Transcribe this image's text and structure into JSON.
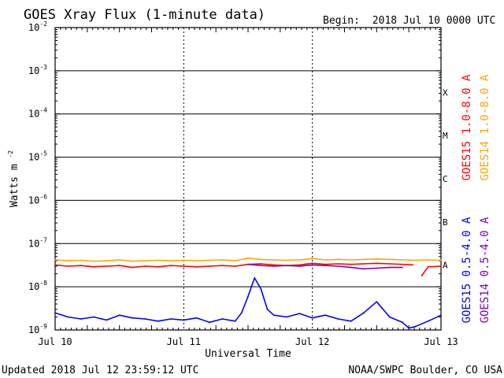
{
  "chart_data": {
    "type": "line",
    "title": "GOES Xray Flux (1-minute data)",
    "begin_label": "Begin:",
    "begin_value": "2018 Jul 10 0000 UTC",
    "ylabel": "Watts m",
    "ylabel_sup": "-2",
    "xlabel": "Universal Time",
    "y_scale": "log",
    "ylim": [
      1e-09,
      0.01
    ],
    "y_ticks": [
      {
        "value": 0.01,
        "base": "10",
        "exp": "-2"
      },
      {
        "value": 0.001,
        "base": "10",
        "exp": "-3"
      },
      {
        "value": 0.0001,
        "base": "10",
        "exp": "-4"
      },
      {
        "value": 1e-05,
        "base": "10",
        "exp": "-5"
      },
      {
        "value": 1e-06,
        "base": "10",
        "exp": "-6"
      },
      {
        "value": 1e-07,
        "base": "10",
        "exp": "-7"
      },
      {
        "value": 1e-08,
        "base": "10",
        "exp": "-8"
      },
      {
        "value": 1e-09,
        "base": "10",
        "exp": "-9"
      }
    ],
    "x_unit": "days since 2018 Jul 10 0000 UTC",
    "xlim": [
      0,
      3
    ],
    "x_ticks": [
      {
        "value": 0,
        "label": "Jul 10"
      },
      {
        "value": 1,
        "label": "Jul 11"
      },
      {
        "value": 2,
        "label": "Jul 12"
      },
      {
        "value": 3,
        "label": "Jul 13"
      }
    ],
    "flare_classes": [
      {
        "label": "X",
        "value": 0.0001
      },
      {
        "label": "M",
        "value": 1e-05
      },
      {
        "label": "C",
        "value": 1e-06
      },
      {
        "label": "B",
        "value": 1e-07
      },
      {
        "label": "A",
        "value": 1e-08
      }
    ],
    "grid": true,
    "series": [
      {
        "name": "GOES15 1.0-8.0 A",
        "color": "#ff0000",
        "x": [
          0.0,
          0.1,
          0.2,
          0.3,
          0.4,
          0.5,
          0.6,
          0.7,
          0.8,
          0.9,
          1.0,
          1.1,
          1.2,
          1.3,
          1.4,
          1.5,
          1.6,
          1.7,
          1.8,
          1.9,
          2.0,
          2.1,
          2.2,
          2.3,
          2.4,
          2.5,
          2.6,
          2.7,
          2.78,
          2.8,
          2.85,
          2.9,
          3.0
        ],
        "y": [
          3.2e-08,
          3e-08,
          3.1e-08,
          2.9e-08,
          3e-08,
          3.1e-08,
          2.8e-08,
          3e-08,
          2.9e-08,
          3.1e-08,
          3e-08,
          2.9e-08,
          3e-08,
          3.1e-08,
          3e-08,
          3.3e-08,
          3.4e-08,
          3.2e-08,
          3.1e-08,
          3.2e-08,
          3.5e-08,
          3.3e-08,
          3.4e-08,
          3.3e-08,
          3.4e-08,
          3.5e-08,
          3.4e-08,
          3.3e-08,
          3.2e-08,
          null,
          1.8e-08,
          2.9e-08,
          3e-08
        ]
      },
      {
        "name": "GOES14 1.0-8.0 A",
        "color": "#ffa500",
        "x": [
          0.0,
          0.1,
          0.2,
          0.3,
          0.4,
          0.5,
          0.6,
          0.7,
          0.8,
          0.9,
          1.0,
          1.1,
          1.2,
          1.3,
          1.4,
          1.5,
          1.6,
          1.7,
          1.8,
          1.9,
          2.0,
          2.1,
          2.2,
          2.3,
          2.4,
          2.5,
          2.6,
          2.7,
          2.8,
          2.9,
          3.0
        ],
        "y": [
          4.2e-08,
          4e-08,
          4.1e-08,
          3.9e-08,
          4e-08,
          4.2e-08,
          3.9e-08,
          4e-08,
          4.1e-08,
          4e-08,
          4.1e-08,
          4e-08,
          4.1e-08,
          4.2e-08,
          4e-08,
          4.6e-08,
          4.3e-08,
          4.2e-08,
          4.1e-08,
          4.2e-08,
          4.5e-08,
          4.2e-08,
          4.3e-08,
          4.2e-08,
          4.3e-08,
          4.4e-08,
          4.3e-08,
          4.2e-08,
          4.1e-08,
          4.2e-08,
          4.1e-08
        ]
      },
      {
        "name": "GOES15 0.5-4.0 A",
        "color": "#0000ff",
        "x": [
          0.0,
          0.1,
          0.2,
          0.3,
          0.4,
          0.5,
          0.6,
          0.7,
          0.8,
          0.9,
          1.0,
          1.1,
          1.2,
          1.3,
          1.4,
          1.45,
          1.5,
          1.55,
          1.6,
          1.65,
          1.7,
          1.8,
          1.9,
          2.0,
          2.1,
          2.2,
          2.3,
          2.4,
          2.5,
          2.6,
          2.7,
          2.75,
          2.8,
          2.9,
          3.0
        ],
        "y": [
          2.5e-09,
          2e-09,
          1.8e-09,
          2e-09,
          1.7e-09,
          2.2e-09,
          1.9e-09,
          1.8e-09,
          1.6e-09,
          1.8e-09,
          1.7e-09,
          1.9e-09,
          1.5e-09,
          1.8e-09,
          1.6e-09,
          2.5e-09,
          6e-09,
          1.6e-08,
          9e-09,
          3e-09,
          2.2e-09,
          2e-09,
          2.4e-09,
          1.9e-09,
          2.2e-09,
          1.8e-09,
          1.6e-09,
          2.5e-09,
          4.5e-09,
          2e-09,
          1.5e-09,
          1.1e-09,
          1.2e-09,
          1.6e-09,
          2.2e-09
        ]
      },
      {
        "name": "GOES14 0.5-4.0 A",
        "color": "#7f00bf",
        "x": [
          1.5,
          1.6,
          1.7,
          1.8,
          1.9,
          2.0,
          2.1,
          2.2,
          2.3,
          2.4,
          2.5,
          2.6,
          2.7
        ],
        "y": [
          3.3e-08,
          3.1e-08,
          3e-08,
          3.1e-08,
          3e-08,
          3.2e-08,
          3.1e-08,
          3e-08,
          2.8e-08,
          2.6e-08,
          2.7e-08,
          2.8e-08,
          2.8e-08
        ]
      }
    ],
    "legend_placement": "right (vertical)",
    "footer_left": "Updated 2018 Jul 12 23:59:12 UTC",
    "footer_right": "NOAA/SWPC Boulder, CO USA"
  }
}
